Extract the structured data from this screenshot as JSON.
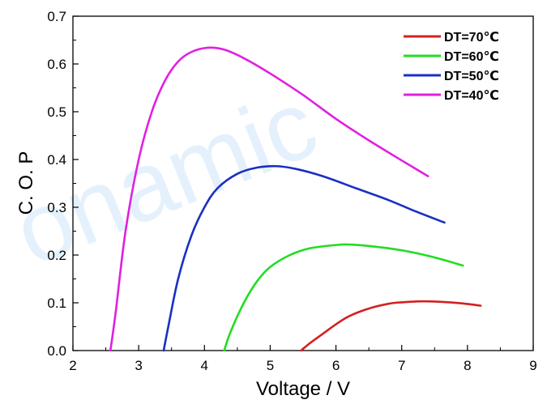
{
  "watermark": "onamic",
  "chart_data": {
    "type": "line",
    "title": "",
    "xlabel": "Voltage / V",
    "ylabel": "C. O. P",
    "xlim": [
      2,
      9
    ],
    "ylim": [
      0,
      0.7
    ],
    "x_ticks": [
      "2",
      "3",
      "4",
      "5",
      "6",
      "7",
      "8",
      "9"
    ],
    "y_ticks": [
      "0.0",
      "0.1",
      "0.2",
      "0.3",
      "0.4",
      "0.5",
      "0.6",
      "0.7"
    ],
    "grid": false,
    "legend_position": "top-right",
    "series": [
      {
        "name": "DT=70℃",
        "color": "#d42020",
        "points": [
          [
            5.47,
            0.0
          ],
          [
            5.6,
            0.015
          ],
          [
            5.8,
            0.035
          ],
          [
            6.0,
            0.055
          ],
          [
            6.2,
            0.072
          ],
          [
            6.5,
            0.088
          ],
          [
            6.8,
            0.098
          ],
          [
            7.0,
            0.101
          ],
          [
            7.3,
            0.103
          ],
          [
            7.6,
            0.102
          ],
          [
            7.9,
            0.099
          ],
          [
            8.2,
            0.094
          ]
        ]
      },
      {
        "name": "DT=60℃",
        "color": "#22dd22",
        "points": [
          [
            4.3,
            0.0
          ],
          [
            4.4,
            0.04
          ],
          [
            4.6,
            0.1
          ],
          [
            4.8,
            0.145
          ],
          [
            5.0,
            0.175
          ],
          [
            5.3,
            0.2
          ],
          [
            5.6,
            0.214
          ],
          [
            6.0,
            0.221
          ],
          [
            6.2,
            0.222
          ],
          [
            6.5,
            0.219
          ],
          [
            7.0,
            0.21
          ],
          [
            7.5,
            0.195
          ],
          [
            7.93,
            0.178
          ]
        ]
      },
      {
        "name": "DT=50℃",
        "color": "#1a2fc4",
        "points": [
          [
            3.38,
            0.0
          ],
          [
            3.45,
            0.05
          ],
          [
            3.6,
            0.15
          ],
          [
            3.8,
            0.24
          ],
          [
            4.0,
            0.3
          ],
          [
            4.2,
            0.34
          ],
          [
            4.5,
            0.37
          ],
          [
            4.8,
            0.383
          ],
          [
            5.1,
            0.386
          ],
          [
            5.4,
            0.38
          ],
          [
            5.8,
            0.365
          ],
          [
            6.3,
            0.34
          ],
          [
            6.8,
            0.315
          ],
          [
            7.2,
            0.292
          ],
          [
            7.65,
            0.268
          ]
        ]
      },
      {
        "name": "DT=40℃",
        "color": "#e020e0",
        "points": [
          [
            2.57,
            0.0
          ],
          [
            2.65,
            0.08
          ],
          [
            2.8,
            0.25
          ],
          [
            3.0,
            0.4
          ],
          [
            3.2,
            0.5
          ],
          [
            3.4,
            0.565
          ],
          [
            3.6,
            0.605
          ],
          [
            3.8,
            0.625
          ],
          [
            4.05,
            0.634
          ],
          [
            4.3,
            0.63
          ],
          [
            4.6,
            0.612
          ],
          [
            5.0,
            0.58
          ],
          [
            5.5,
            0.535
          ],
          [
            6.0,
            0.485
          ],
          [
            6.5,
            0.44
          ],
          [
            7.0,
            0.398
          ],
          [
            7.4,
            0.365
          ]
        ]
      }
    ]
  }
}
